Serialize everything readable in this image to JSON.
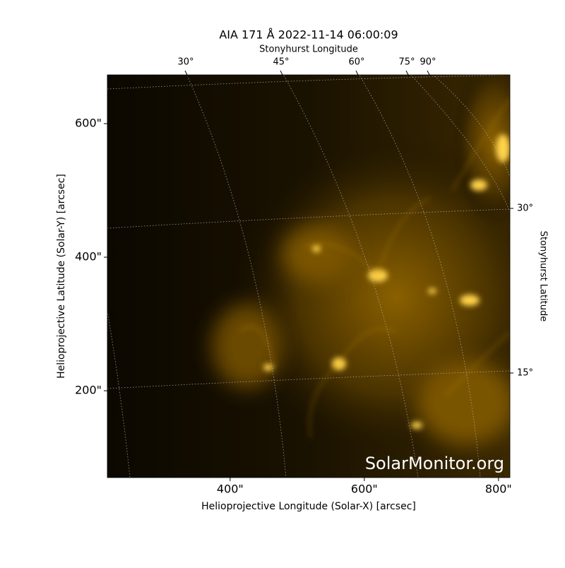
{
  "chart_data": {
    "type": "image",
    "title": "AIA 171 Å 2022-11-14 06:00:09",
    "x_label": "Helioprojective Longitude (Solar-X) [arcsec]",
    "y_label": "Helioprojective Latitude (Solar-Y) [arcsec]",
    "top_label": "Stonyhurst Longitude",
    "right_label": "Stonyhurst Latitude",
    "xlim": [
      217,
      817
    ],
    "ylim": [
      70,
      673
    ],
    "xticks": [
      {
        "value": 400,
        "label": "400\""
      },
      {
        "value": 600,
        "label": "600\""
      },
      {
        "value": 800,
        "label": "800\""
      }
    ],
    "yticks": [
      {
        "value": 200,
        "label": "200\""
      },
      {
        "value": 400,
        "label": "400\""
      },
      {
        "value": 600,
        "label": "600\""
      }
    ],
    "lon_tick_labels": [
      "30°",
      "45°",
      "60°",
      "75°",
      "90°"
    ],
    "lat_tick_labels": [
      "30°",
      "15°"
    ],
    "watermark": "SolarMonitor.org"
  }
}
